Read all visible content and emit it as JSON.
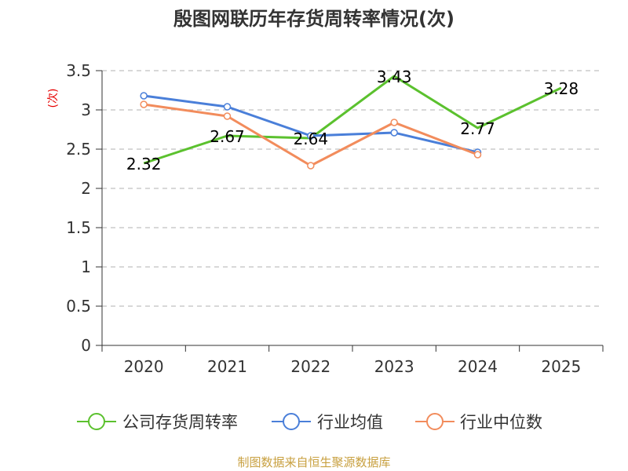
{
  "chart_data": {
    "type": "line",
    "title": "殷图网联历年存货周转率情况(次)",
    "ylabel": "(次)",
    "xlabel": "",
    "categories": [
      "2020",
      "2021",
      "2022",
      "2023",
      "2024",
      "2025"
    ],
    "ylim": [
      0,
      3.5
    ],
    "yticks": [
      "0",
      "0.5",
      "1",
      "1.5",
      "2",
      "2.5",
      "3",
      "3.5"
    ],
    "grid": true,
    "legend_position": "bottom",
    "series": [
      {
        "name": "公司存货周转率",
        "color": "#5bc12e",
        "values": [
          2.32,
          2.67,
          2.64,
          3.43,
          2.77,
          3.28
        ],
        "labels": [
          "2.32",
          "2.67",
          "2.64",
          "3.43",
          "2.77",
          "3.28"
        ],
        "show_labels": true
      },
      {
        "name": "行业均值",
        "color": "#4a7fd9",
        "values": [
          3.18,
          3.04,
          2.67,
          2.71,
          2.46,
          null
        ],
        "show_labels": false
      },
      {
        "name": "行业中位数",
        "color": "#f28c5c",
        "values": [
          3.07,
          2.92,
          2.29,
          2.84,
          2.43,
          null
        ],
        "show_labels": false
      }
    ]
  },
  "source": "制图数据来自恒生聚源数据库"
}
